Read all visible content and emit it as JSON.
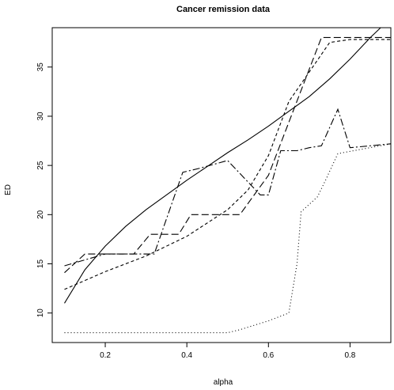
{
  "chart_data": {
    "type": "line",
    "title": "Cancer remission data",
    "xlabel": "alpha",
    "ylabel": "ED",
    "xlim": [
      0.07,
      0.9
    ],
    "ylim": [
      7,
      39
    ],
    "xticks": [
      0.2,
      0.4,
      0.6,
      0.8
    ],
    "yticks": [
      10,
      15,
      20,
      25,
      30,
      35
    ],
    "grid": false,
    "series": [
      {
        "style": "solid",
        "x": [
          0.1,
          0.15,
          0.2,
          0.25,
          0.3,
          0.35,
          0.4,
          0.45,
          0.5,
          0.55,
          0.6,
          0.65,
          0.7,
          0.75,
          0.8,
          0.85,
          0.875
        ],
        "y": [
          11.0,
          14.4,
          16.8,
          18.8,
          20.5,
          22.0,
          23.5,
          24.9,
          26.3,
          27.6,
          29.0,
          30.5,
          32.0,
          33.8,
          35.8,
          38.0,
          39.0
        ]
      },
      {
        "style": "long-dash",
        "x": [
          0.1,
          0.15,
          0.27,
          0.31,
          0.38,
          0.41,
          0.45,
          0.53,
          0.6,
          0.73,
          0.9
        ],
        "y": [
          14.1,
          16.0,
          16.0,
          18.0,
          18.0,
          20.0,
          20.0,
          20.0,
          24.0,
          38.0,
          38.0
        ]
      },
      {
        "style": "dashed",
        "x": [
          0.1,
          0.2,
          0.3,
          0.4,
          0.5,
          0.55,
          0.6,
          0.65,
          0.7,
          0.75,
          0.8,
          0.9
        ],
        "y": [
          12.4,
          14.2,
          15.8,
          17.8,
          20.5,
          22.5,
          26.0,
          31.5,
          34.5,
          37.5,
          37.8,
          37.8
        ]
      },
      {
        "style": "dash-dot",
        "x": [
          0.1,
          0.2,
          0.32,
          0.39,
          0.43,
          0.5,
          0.58,
          0.6,
          0.63,
          0.67,
          0.7,
          0.73,
          0.77,
          0.8,
          0.9
        ],
        "y": [
          14.8,
          16.0,
          16.0,
          24.3,
          24.7,
          25.5,
          22.0,
          22.0,
          26.5,
          26.5,
          26.8,
          27.0,
          30.7,
          26.8,
          27.2
        ]
      },
      {
        "style": "dotted",
        "x": [
          0.1,
          0.3,
          0.5,
          0.53,
          0.6,
          0.65,
          0.67,
          0.68,
          0.72,
          0.74,
          0.77,
          0.9
        ],
        "y": [
          8.0,
          8.0,
          8.0,
          8.3,
          9.2,
          10.0,
          15.0,
          20.3,
          21.8,
          23.5,
          26.2,
          27.2
        ]
      }
    ]
  }
}
